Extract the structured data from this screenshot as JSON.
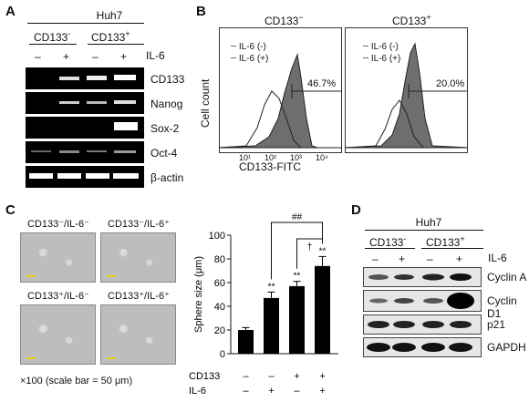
{
  "panel_a": {
    "letter": "A",
    "cell_line": "Huh7",
    "groups": [
      "CD133",
      "CD133"
    ],
    "group_sups": [
      "-",
      "+"
    ],
    "il6_label": "IL-6",
    "il6_signs": [
      "–",
      "+",
      "–",
      "+"
    ],
    "genes": [
      "CD133",
      "Nanog",
      "Sox-2",
      "Oct-4",
      "β-actin"
    ]
  },
  "panel_b": {
    "letter": "B",
    "titles": [
      "CD133",
      "CD133"
    ],
    "title_sups": [
      "−",
      "+"
    ],
    "ylabel": "Cell count",
    "xlabel": "CD133-FITC",
    "legend": [
      "IL-6 (-)",
      "IL-6 (+)"
    ],
    "percents": [
      "46.7%",
      "20.0%"
    ],
    "ticks": [
      "10¹",
      "10²",
      "10³",
      "10⁴"
    ]
  },
  "panel_c": {
    "letter": "C",
    "labels": [
      "CD133⁻/IL-6⁻",
      "CD133⁻/IL-6⁺",
      "CD133⁺/IL-6⁻",
      "CD133⁺/IL-6⁺"
    ],
    "scale_note": "×100 (scale bar = 50 μm)",
    "significance": {
      "pair": "##",
      "dagger": "†",
      "stars": "**"
    },
    "row_labels": [
      "CD133",
      "IL-6"
    ],
    "row_signs": [
      [
        "–",
        "–",
        "+",
        "+"
      ],
      [
        "–",
        "+",
        "–",
        "+"
      ]
    ]
  },
  "chart_data": {
    "type": "bar",
    "categories": [
      "CD133–/IL-6–",
      "CD133–/IL-6+",
      "CD133+/IL-6–",
      "CD133+/IL-6+"
    ],
    "values": [
      20,
      47,
      57,
      74
    ],
    "errors": [
      2,
      5,
      4,
      8
    ],
    "ylabel": "Sphere size (μm)",
    "ylim": [
      0,
      100
    ],
    "yticks": [
      "0",
      "20",
      "40",
      "60",
      "80",
      "100"
    ],
    "grid": false
  },
  "panel_d": {
    "letter": "D",
    "cell_line": "Huh7",
    "groups": [
      "CD133",
      "CD133"
    ],
    "group_sups": [
      "-",
      "+"
    ],
    "il6_label": "IL-6",
    "il6_signs": [
      "–",
      "+",
      "–",
      "+"
    ],
    "proteins": [
      "Cyclin A",
      "Cyclin D1",
      "p21",
      "GAPDH"
    ]
  }
}
